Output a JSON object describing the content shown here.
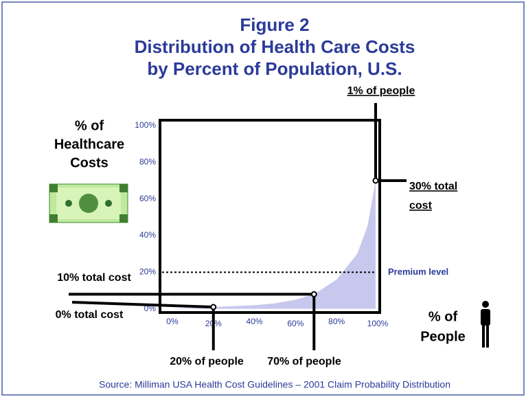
{
  "chart_data": {
    "type": "area",
    "title": [
      "Figure 2",
      "Distribution of Health Care Costs",
      "by Percent of Population, U.S."
    ],
    "y_label": [
      "% of",
      "Healthcare",
      "Costs"
    ],
    "x_label": [
      "% of",
      "People"
    ],
    "source": "Source:  Milliman USA Health Cost Guidelines – 2001 Claim Probability Distribution",
    "x": [
      0,
      10,
      20,
      30,
      40,
      50,
      60,
      69,
      80,
      90,
      95,
      99
    ],
    "values": [
      0,
      0.5,
      1,
      1.5,
      2,
      3,
      5,
      8,
      16,
      30,
      45,
      70
    ],
    "color": "#c8c8ee",
    "xlim": [
      -6,
      101
    ],
    "ylim": [
      -2,
      103
    ],
    "xticks": [
      {
        "value": 0,
        "label": "0%"
      },
      {
        "value": 20,
        "label": "20%"
      },
      {
        "value": 40,
        "label": "40%"
      },
      {
        "value": 60,
        "label": "60%"
      },
      {
        "value": 80,
        "label": "80%"
      },
      {
        "value": 100,
        "label": "100%"
      }
    ],
    "yticks": [
      {
        "value": 0,
        "label": "0%"
      },
      {
        "value": 20,
        "label": "20%"
      },
      {
        "value": 40,
        "label": "40%"
      },
      {
        "value": 60,
        "label": "60%"
      },
      {
        "value": 80,
        "label": "80%"
      },
      {
        "value": 100,
        "label": "100%"
      }
    ],
    "premium_level": {
      "label": "Premium level",
      "value": 20
    },
    "annotations": {
      "top_person": "1% of people",
      "top_cost": [
        "30% total",
        "cost"
      ],
      "mid_cost": "10% total cost",
      "low_cost": "0% total cost",
      "low_people": "20% of people",
      "mid_people": "70% of people"
    }
  }
}
